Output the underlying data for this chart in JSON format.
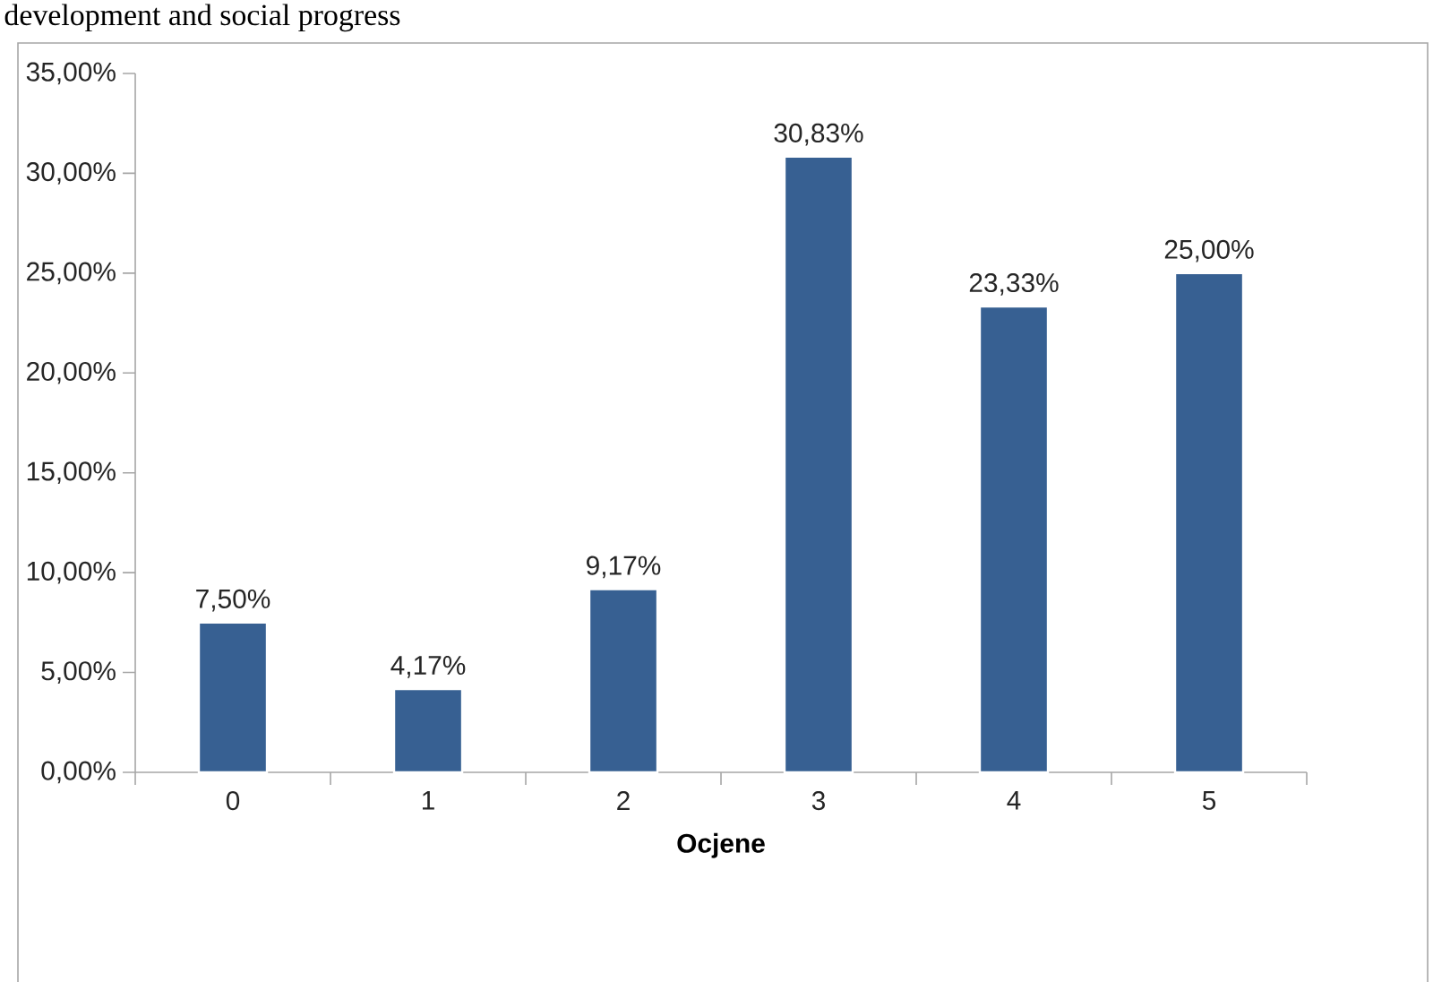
{
  "chart_data": {
    "type": "bar",
    "categories": [
      "0",
      "1",
      "2",
      "3",
      "4",
      "5"
    ],
    "values": [
      7.5,
      4.17,
      9.17,
      30.83,
      23.33,
      25.0
    ],
    "value_labels": [
      "7,50%",
      "4,17%",
      "9,17%",
      "30,83%",
      "23,33%",
      "25,00%"
    ],
    "color": "#376092",
    "xlabel": "Ocjene",
    "ylim": [
      0,
      35
    ],
    "yticks": [
      {
        "value": 0,
        "label": "0,00%"
      },
      {
        "value": 5,
        "label": "5,00%"
      },
      {
        "value": 10,
        "label": "10,00%"
      },
      {
        "value": 15,
        "label": "15,00%"
      },
      {
        "value": 20,
        "label": "20,00%"
      },
      {
        "value": 25,
        "label": "25,00%"
      },
      {
        "value": 30,
        "label": "30,00%"
      },
      {
        "value": 35,
        "label": "35,00%"
      }
    ],
    "grid": false,
    "annotations": [
      "development and social progress"
    ]
  }
}
